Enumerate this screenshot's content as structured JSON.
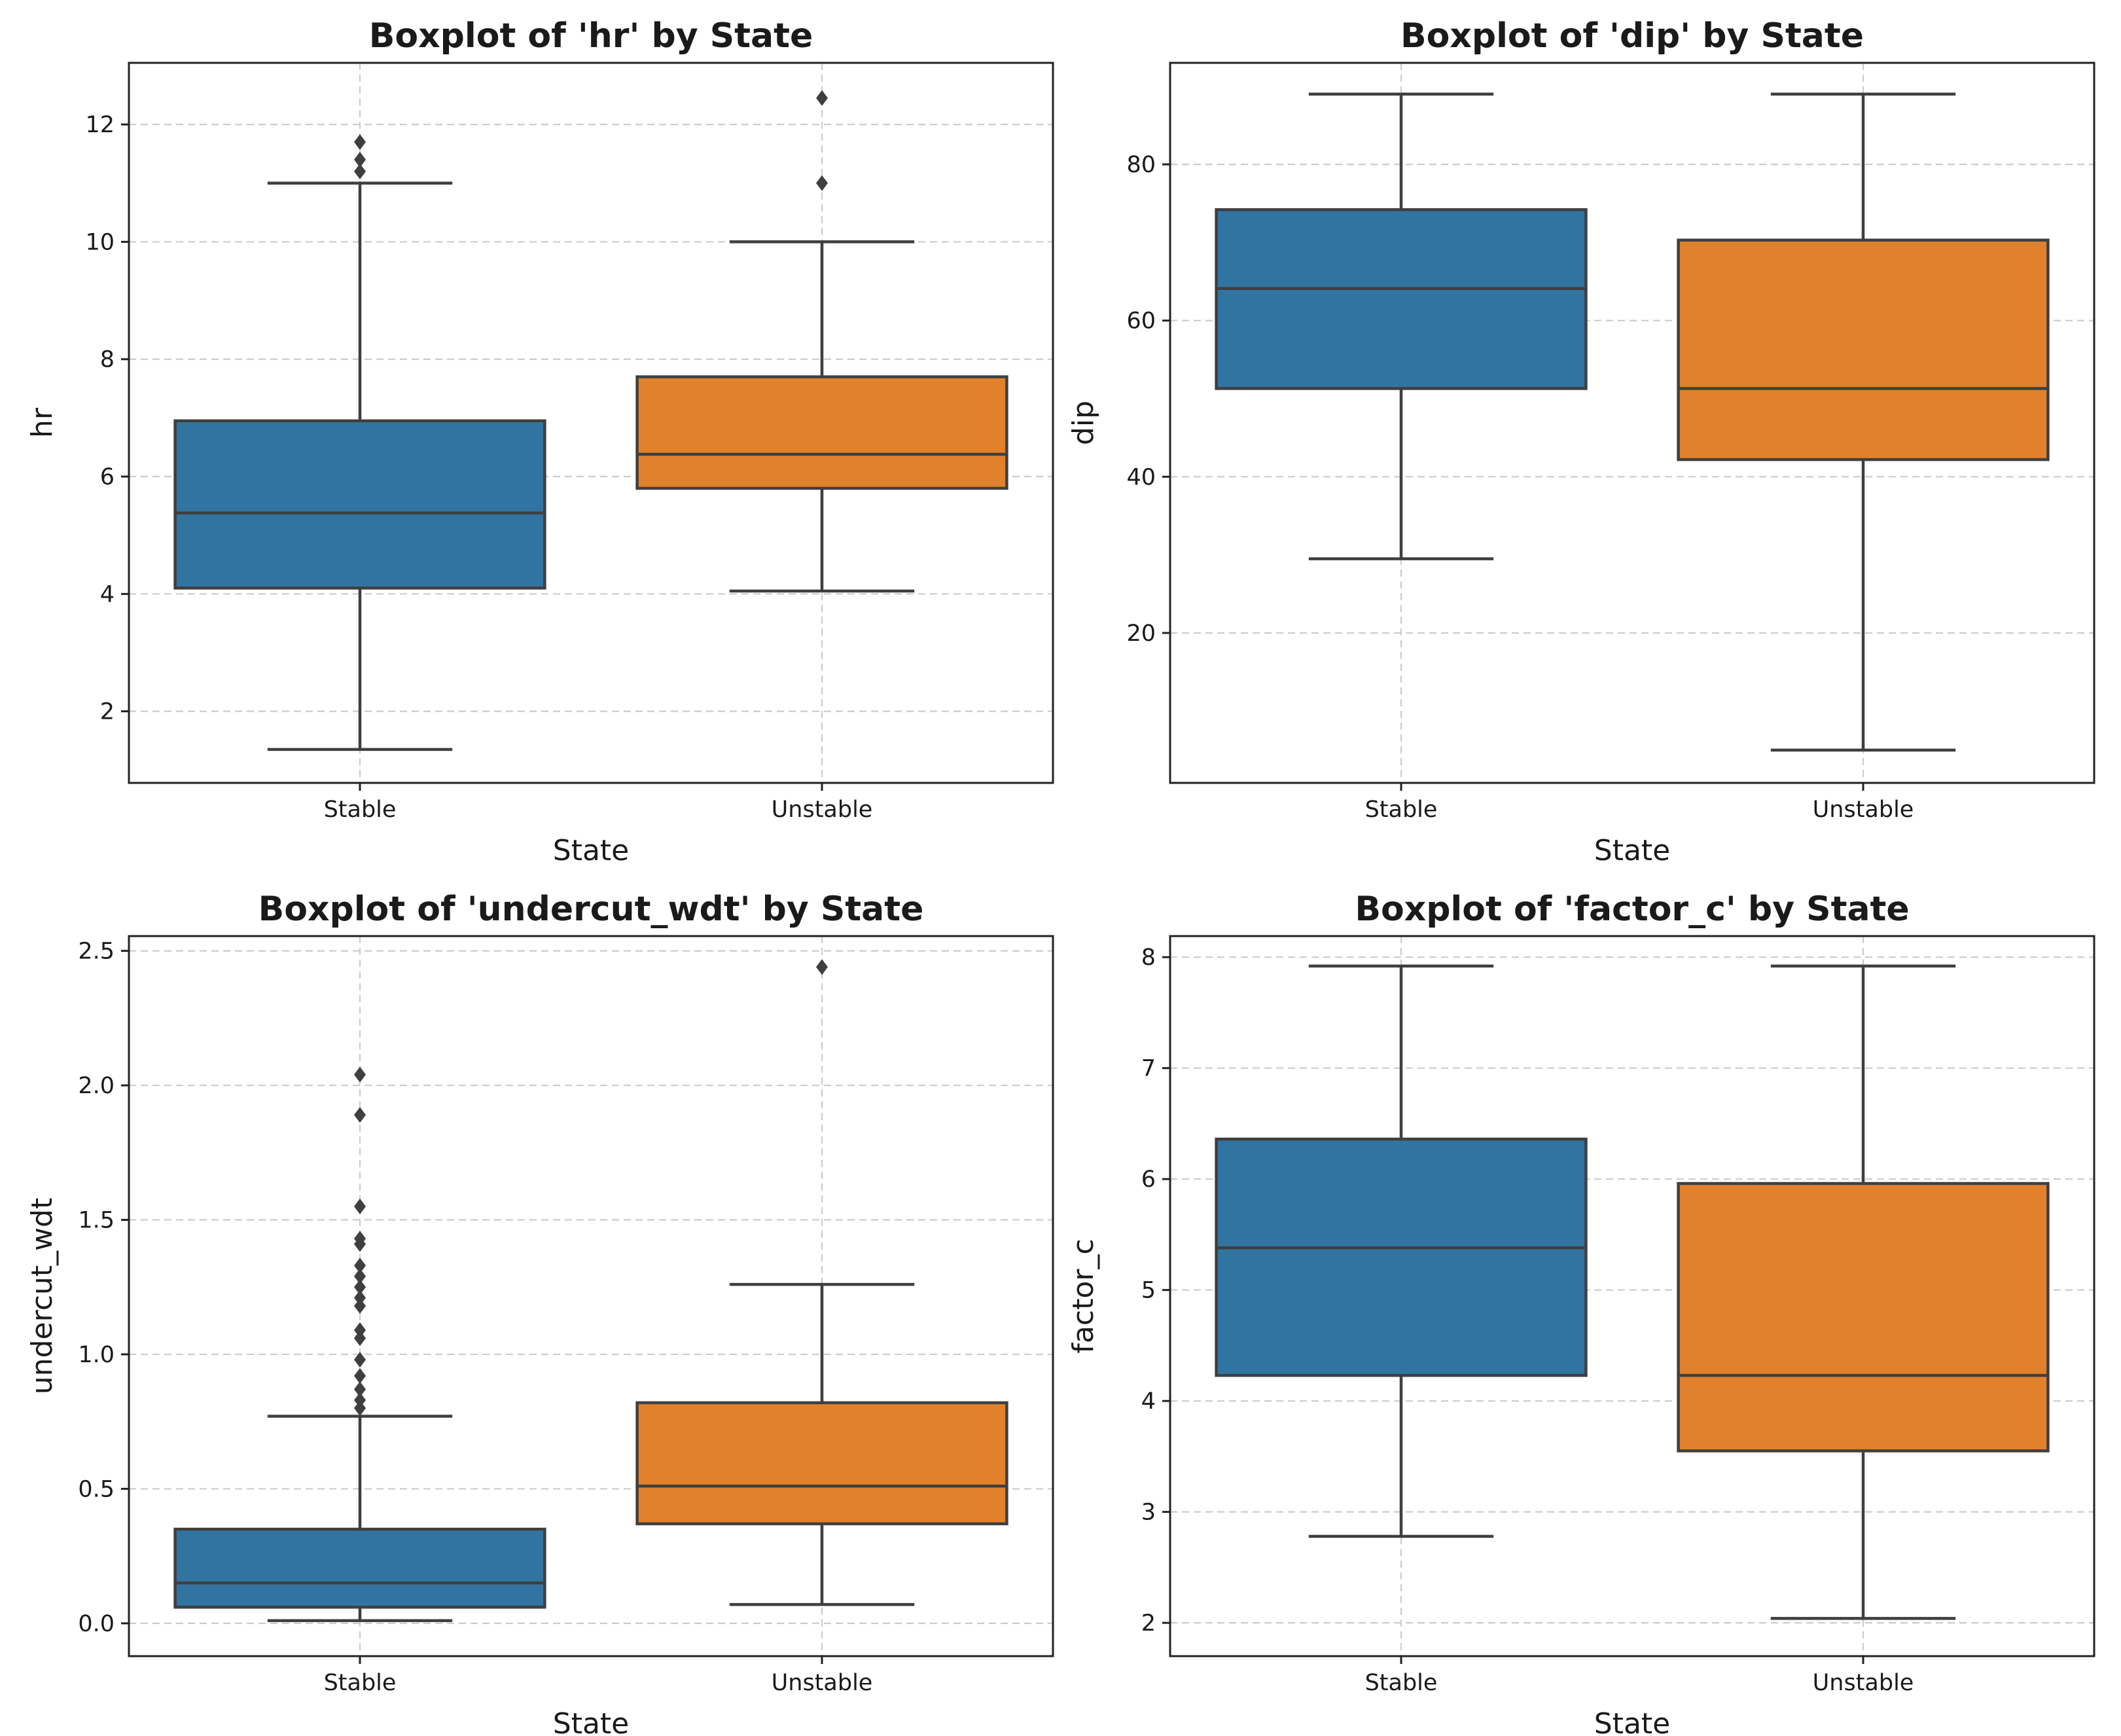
{
  "colors": {
    "stable": "#3274a1",
    "unstable": "#e1812c"
  },
  "chart_data": [
    {
      "type": "box",
      "title": "Boxplot of 'hr' by State",
      "xlabel": "State",
      "ylabel": "hr",
      "ylim": [
        0.78,
        13.05
      ],
      "yticks": [
        2,
        4,
        6,
        8,
        10,
        12
      ],
      "ytick_labels": [
        "2",
        "4",
        "6",
        "8",
        "10",
        "12"
      ],
      "categories": [
        "Stable",
        "Unstable"
      ],
      "boxes": [
        {
          "min": 1.35,
          "q1": 4.1,
          "median": 5.38,
          "q3": 6.95,
          "max": 11.0,
          "outliers": [
            11.2,
            11.4,
            11.7
          ]
        },
        {
          "min": 4.05,
          "q1": 5.8,
          "median": 6.38,
          "q3": 7.7,
          "max": 10.0,
          "outliers": [
            11.0,
            12.45
          ]
        }
      ],
      "grid": true
    },
    {
      "type": "box",
      "title": "Boxplot of 'dip' by State",
      "xlabel": "State",
      "ylabel": "dip",
      "ylim": [
        0.8,
        93.0
      ],
      "yticks": [
        20,
        40,
        60,
        80
      ],
      "ytick_labels": [
        "20",
        "40",
        "60",
        "80"
      ],
      "categories": [
        "Stable",
        "Unstable"
      ],
      "boxes": [
        {
          "min": 29.5,
          "q1": 51.3,
          "median": 64.1,
          "q3": 74.2,
          "max": 89.0,
          "outliers": []
        },
        {
          "min": 5.0,
          "q1": 42.2,
          "median": 51.3,
          "q3": 70.3,
          "max": 89.0,
          "outliers": []
        }
      ],
      "grid": true
    },
    {
      "type": "box",
      "title": "Boxplot of 'undercut_wdt' by State",
      "xlabel": "State",
      "ylabel": "undercut_wdt",
      "ylim": [
        -0.122,
        2.555
      ],
      "yticks": [
        0.0,
        0.5,
        1.0,
        1.5,
        2.0,
        2.5
      ],
      "ytick_labels": [
        "0.0",
        "0.5",
        "1.0",
        "1.5",
        "2.0",
        "2.5"
      ],
      "categories": [
        "Stable",
        "Unstable"
      ],
      "boxes": [
        {
          "min": 0.01,
          "q1": 0.06,
          "median": 0.15,
          "q3": 0.35,
          "max": 0.77,
          "outliers": [
            0.8,
            0.83,
            0.87,
            0.92,
            0.98,
            1.06,
            1.09,
            1.18,
            1.21,
            1.25,
            1.29,
            1.33,
            1.41,
            1.43,
            1.55,
            1.89,
            2.04
          ]
        },
        {
          "min": 0.07,
          "q1": 0.37,
          "median": 0.51,
          "q3": 0.82,
          "max": 1.26,
          "outliers": [
            2.44
          ]
        }
      ],
      "grid": true
    },
    {
      "type": "box",
      "title": "Boxplot of 'factor_c' by State",
      "xlabel": "State",
      "ylabel": "factor_c",
      "ylim": [
        1.7,
        8.19
      ],
      "yticks": [
        2,
        3,
        4,
        5,
        6,
        7,
        8
      ],
      "ytick_labels": [
        "2",
        "3",
        "4",
        "5",
        "6",
        "7",
        "8"
      ],
      "categories": [
        "Stable",
        "Unstable"
      ],
      "boxes": [
        {
          "min": 2.78,
          "q1": 4.23,
          "median": 5.38,
          "q3": 6.36,
          "max": 7.92,
          "outliers": []
        },
        {
          "min": 2.04,
          "q1": 3.55,
          "median": 4.23,
          "q3": 5.96,
          "max": 7.92,
          "outliers": []
        }
      ],
      "grid": true
    }
  ]
}
